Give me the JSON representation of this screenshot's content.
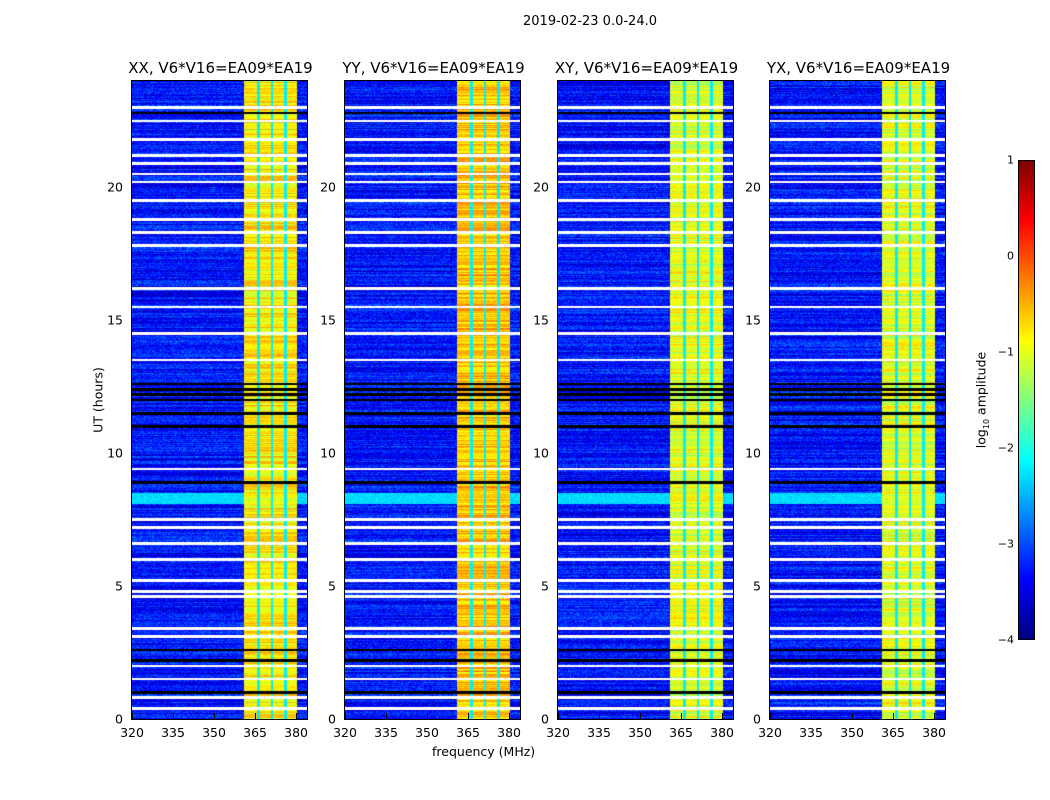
{
  "suptitle": "2019-02-23 0.0-24.0",
  "xlabel": "frequency (MHz)",
  "ylabel": "UT (hours)",
  "colorbar": {
    "label_prefix": "log",
    "label_sub": "10",
    "label_suffix": " amplitude",
    "ticks": [
      "1",
      "0",
      "−1",
      "−2",
      "−3",
      "−4"
    ],
    "range": [
      -4,
      1
    ],
    "colormap": "jet"
  },
  "chart_data": {
    "type": "heatmap",
    "panels": [
      {
        "title": "XX, V6*V16=EA09*EA19",
        "band_level": -0.8
      },
      {
        "title": "YY, V6*V16=EA09*EA19",
        "band_level": -0.6
      },
      {
        "title": "XY, V6*V16=EA09*EA19",
        "band_level": -1.0
      },
      {
        "title": "YX, V6*V16=EA09*EA19",
        "band_level": -1.0
      }
    ],
    "x_ticks": [
      "320",
      "335",
      "350",
      "365",
      "380"
    ],
    "x_tick_values": [
      320,
      335,
      350,
      365,
      380
    ],
    "xlim": [
      320,
      384
    ],
    "y_ticks": [
      "0",
      "5",
      "10",
      "15",
      "20"
    ],
    "y_tick_values": [
      0,
      5,
      10,
      15,
      20
    ],
    "ylim": [
      0,
      24
    ],
    "background_level": -3.3,
    "rfi_band_mhz": [
      361,
      380.5
    ],
    "band_gaps_mhz": [
      366.2,
      371.2,
      376.2
    ],
    "flagged_white_hours": [
      0.4,
      0.8,
      1.5,
      2.0,
      3.1,
      3.4,
      4.6,
      4.8,
      5.2,
      6.0,
      6.6,
      7.2,
      7.5,
      9.4,
      13.5,
      14.5,
      15.5,
      16.2,
      17.8,
      18.3,
      18.8,
      19.5,
      20.2,
      20.5,
      20.9,
      21.2,
      21.8,
      22.5,
      23.0
    ],
    "flagged_black_hours": [
      1.0,
      2.2,
      2.6,
      8.9,
      11.0,
      11.5,
      12.0,
      12.2,
      12.4,
      12.6,
      22.8
    ],
    "enhanced_hours": [
      [
        8.1,
        8.5
      ]
    ]
  }
}
